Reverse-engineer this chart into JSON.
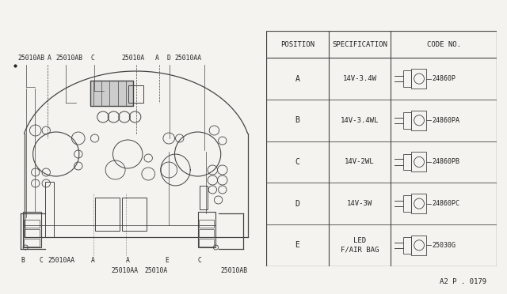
{
  "bg_color": "#f5f3ef",
  "title_ref": "A2 P . 0179",
  "table": {
    "headers": [
      "POSITION",
      "SPECIFICATION",
      "CODE NO."
    ],
    "rows": [
      {
        "pos": "A",
        "spec": "14V-3.4W",
        "code": "24860P"
      },
      {
        "pos": "B",
        "spec": "14V-3.4WL",
        "code": "24860PA"
      },
      {
        "pos": "C",
        "spec": "14V-2WL",
        "code": "24860PB"
      },
      {
        "pos": "D",
        "spec": "14V-3W",
        "code": "24860PC"
      },
      {
        "pos": "E",
        "spec": "LED\nF/AIR BAG",
        "code": "25030G"
      }
    ]
  },
  "line_color": "#444444",
  "text_color": "#222222",
  "font_size_label": 5.8,
  "font_size_table": 7.0
}
